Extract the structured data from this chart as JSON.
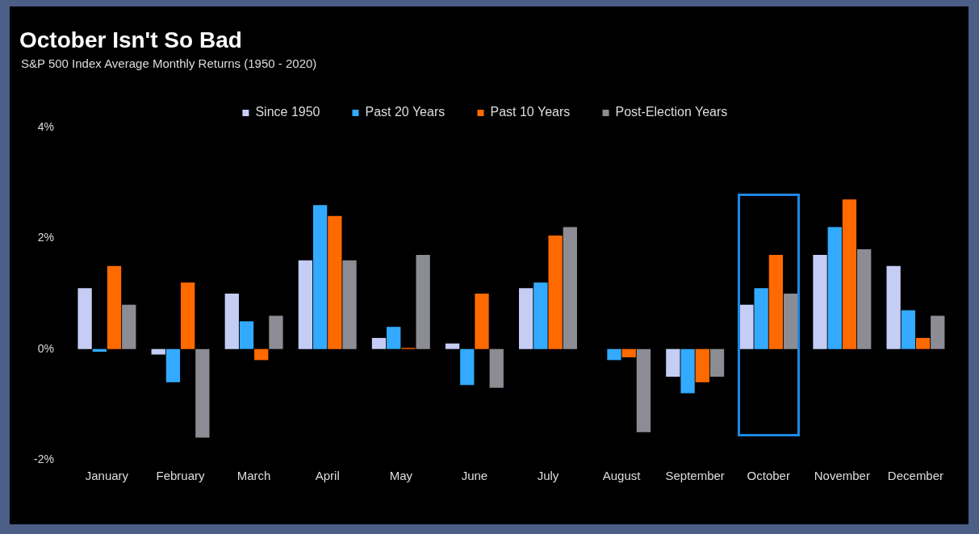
{
  "chart_data": {
    "type": "bar",
    "title": "October Isn't So Bad",
    "subtitle": "S&P 500 Index Average Monthly Returns (1950 - 2020)",
    "categories": [
      "January",
      "February",
      "March",
      "April",
      "May",
      "June",
      "July",
      "August",
      "September",
      "October",
      "November",
      "December"
    ],
    "series": [
      {
        "name": "Since 1950",
        "color": "#c5cdf5",
        "values": [
          1.1,
          -0.1,
          1.0,
          1.6,
          0.2,
          0.1,
          1.1,
          0.0,
          -0.5,
          0.8,
          1.7,
          1.5
        ]
      },
      {
        "name": "Past 20 Years",
        "color": "#33aaff",
        "values": [
          -0.05,
          -0.6,
          0.5,
          2.6,
          0.4,
          -0.65,
          1.2,
          -0.2,
          -0.8,
          1.1,
          2.2,
          0.7
        ]
      },
      {
        "name": "Past 10 Years",
        "color": "#ff6a00",
        "values": [
          1.5,
          1.2,
          -0.2,
          2.4,
          0.02,
          1.0,
          2.05,
          -0.15,
          -0.6,
          1.7,
          2.7,
          0.2
        ]
      },
      {
        "name": "Post-Election Years",
        "color": "#8c8c94",
        "values": [
          0.8,
          -1.6,
          0.6,
          1.6,
          1.7,
          -0.7,
          2.2,
          -1.5,
          -0.5,
          1.0,
          1.8,
          0.6
        ]
      }
    ],
    "ylim": [
      -2,
      4
    ],
    "yticks": [
      {
        "value": -2,
        "label": "-2%"
      },
      {
        "value": 0,
        "label": "0%"
      },
      {
        "value": 2,
        "label": "2%"
      },
      {
        "value": 4,
        "label": "4%"
      }
    ],
    "grid": false,
    "legend": "top"
  }
}
